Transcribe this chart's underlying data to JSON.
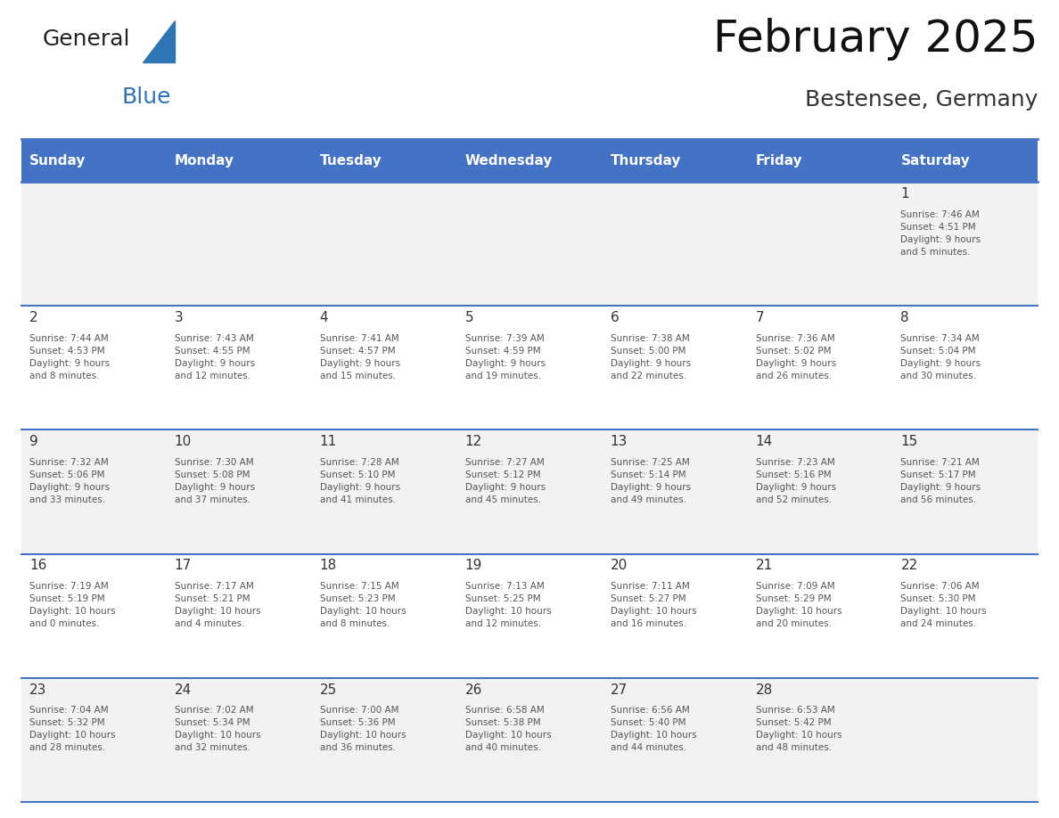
{
  "title": "February 2025",
  "subtitle": "Bestensee, Germany",
  "days_of_week": [
    "Sunday",
    "Monday",
    "Tuesday",
    "Wednesday",
    "Thursday",
    "Friday",
    "Saturday"
  ],
  "header_bg": "#4472C4",
  "header_text": "#FFFFFF",
  "cell_bg_light": "#F2F2F2",
  "cell_bg_white": "#FFFFFF",
  "border_color": "#4472C4",
  "day_num_color": "#333333",
  "text_color": "#555555",
  "weeks": [
    [
      {
        "day": "",
        "info": ""
      },
      {
        "day": "",
        "info": ""
      },
      {
        "day": "",
        "info": ""
      },
      {
        "day": "",
        "info": ""
      },
      {
        "day": "",
        "info": ""
      },
      {
        "day": "",
        "info": ""
      },
      {
        "day": "1",
        "info": "Sunrise: 7:46 AM\nSunset: 4:51 PM\nDaylight: 9 hours\nand 5 minutes."
      }
    ],
    [
      {
        "day": "2",
        "info": "Sunrise: 7:44 AM\nSunset: 4:53 PM\nDaylight: 9 hours\nand 8 minutes."
      },
      {
        "day": "3",
        "info": "Sunrise: 7:43 AM\nSunset: 4:55 PM\nDaylight: 9 hours\nand 12 minutes."
      },
      {
        "day": "4",
        "info": "Sunrise: 7:41 AM\nSunset: 4:57 PM\nDaylight: 9 hours\nand 15 minutes."
      },
      {
        "day": "5",
        "info": "Sunrise: 7:39 AM\nSunset: 4:59 PM\nDaylight: 9 hours\nand 19 minutes."
      },
      {
        "day": "6",
        "info": "Sunrise: 7:38 AM\nSunset: 5:00 PM\nDaylight: 9 hours\nand 22 minutes."
      },
      {
        "day": "7",
        "info": "Sunrise: 7:36 AM\nSunset: 5:02 PM\nDaylight: 9 hours\nand 26 minutes."
      },
      {
        "day": "8",
        "info": "Sunrise: 7:34 AM\nSunset: 5:04 PM\nDaylight: 9 hours\nand 30 minutes."
      }
    ],
    [
      {
        "day": "9",
        "info": "Sunrise: 7:32 AM\nSunset: 5:06 PM\nDaylight: 9 hours\nand 33 minutes."
      },
      {
        "day": "10",
        "info": "Sunrise: 7:30 AM\nSunset: 5:08 PM\nDaylight: 9 hours\nand 37 minutes."
      },
      {
        "day": "11",
        "info": "Sunrise: 7:28 AM\nSunset: 5:10 PM\nDaylight: 9 hours\nand 41 minutes."
      },
      {
        "day": "12",
        "info": "Sunrise: 7:27 AM\nSunset: 5:12 PM\nDaylight: 9 hours\nand 45 minutes."
      },
      {
        "day": "13",
        "info": "Sunrise: 7:25 AM\nSunset: 5:14 PM\nDaylight: 9 hours\nand 49 minutes."
      },
      {
        "day": "14",
        "info": "Sunrise: 7:23 AM\nSunset: 5:16 PM\nDaylight: 9 hours\nand 52 minutes."
      },
      {
        "day": "15",
        "info": "Sunrise: 7:21 AM\nSunset: 5:17 PM\nDaylight: 9 hours\nand 56 minutes."
      }
    ],
    [
      {
        "day": "16",
        "info": "Sunrise: 7:19 AM\nSunset: 5:19 PM\nDaylight: 10 hours\nand 0 minutes."
      },
      {
        "day": "17",
        "info": "Sunrise: 7:17 AM\nSunset: 5:21 PM\nDaylight: 10 hours\nand 4 minutes."
      },
      {
        "day": "18",
        "info": "Sunrise: 7:15 AM\nSunset: 5:23 PM\nDaylight: 10 hours\nand 8 minutes."
      },
      {
        "day": "19",
        "info": "Sunrise: 7:13 AM\nSunset: 5:25 PM\nDaylight: 10 hours\nand 12 minutes."
      },
      {
        "day": "20",
        "info": "Sunrise: 7:11 AM\nSunset: 5:27 PM\nDaylight: 10 hours\nand 16 minutes."
      },
      {
        "day": "21",
        "info": "Sunrise: 7:09 AM\nSunset: 5:29 PM\nDaylight: 10 hours\nand 20 minutes."
      },
      {
        "day": "22",
        "info": "Sunrise: 7:06 AM\nSunset: 5:30 PM\nDaylight: 10 hours\nand 24 minutes."
      }
    ],
    [
      {
        "day": "23",
        "info": "Sunrise: 7:04 AM\nSunset: 5:32 PM\nDaylight: 10 hours\nand 28 minutes."
      },
      {
        "day": "24",
        "info": "Sunrise: 7:02 AM\nSunset: 5:34 PM\nDaylight: 10 hours\nand 32 minutes."
      },
      {
        "day": "25",
        "info": "Sunrise: 7:00 AM\nSunset: 5:36 PM\nDaylight: 10 hours\nand 36 minutes."
      },
      {
        "day": "26",
        "info": "Sunrise: 6:58 AM\nSunset: 5:38 PM\nDaylight: 10 hours\nand 40 minutes."
      },
      {
        "day": "27",
        "info": "Sunrise: 6:56 AM\nSunset: 5:40 PM\nDaylight: 10 hours\nand 44 minutes."
      },
      {
        "day": "28",
        "info": "Sunrise: 6:53 AM\nSunset: 5:42 PM\nDaylight: 10 hours\nand 48 minutes."
      },
      {
        "day": "",
        "info": ""
      }
    ]
  ],
  "logo_text1": "General",
  "logo_text2": "Blue",
  "logo_color1": "#222222",
  "logo_color2": "#2E75B6",
  "logo_triangle_color": "#2E75B6"
}
